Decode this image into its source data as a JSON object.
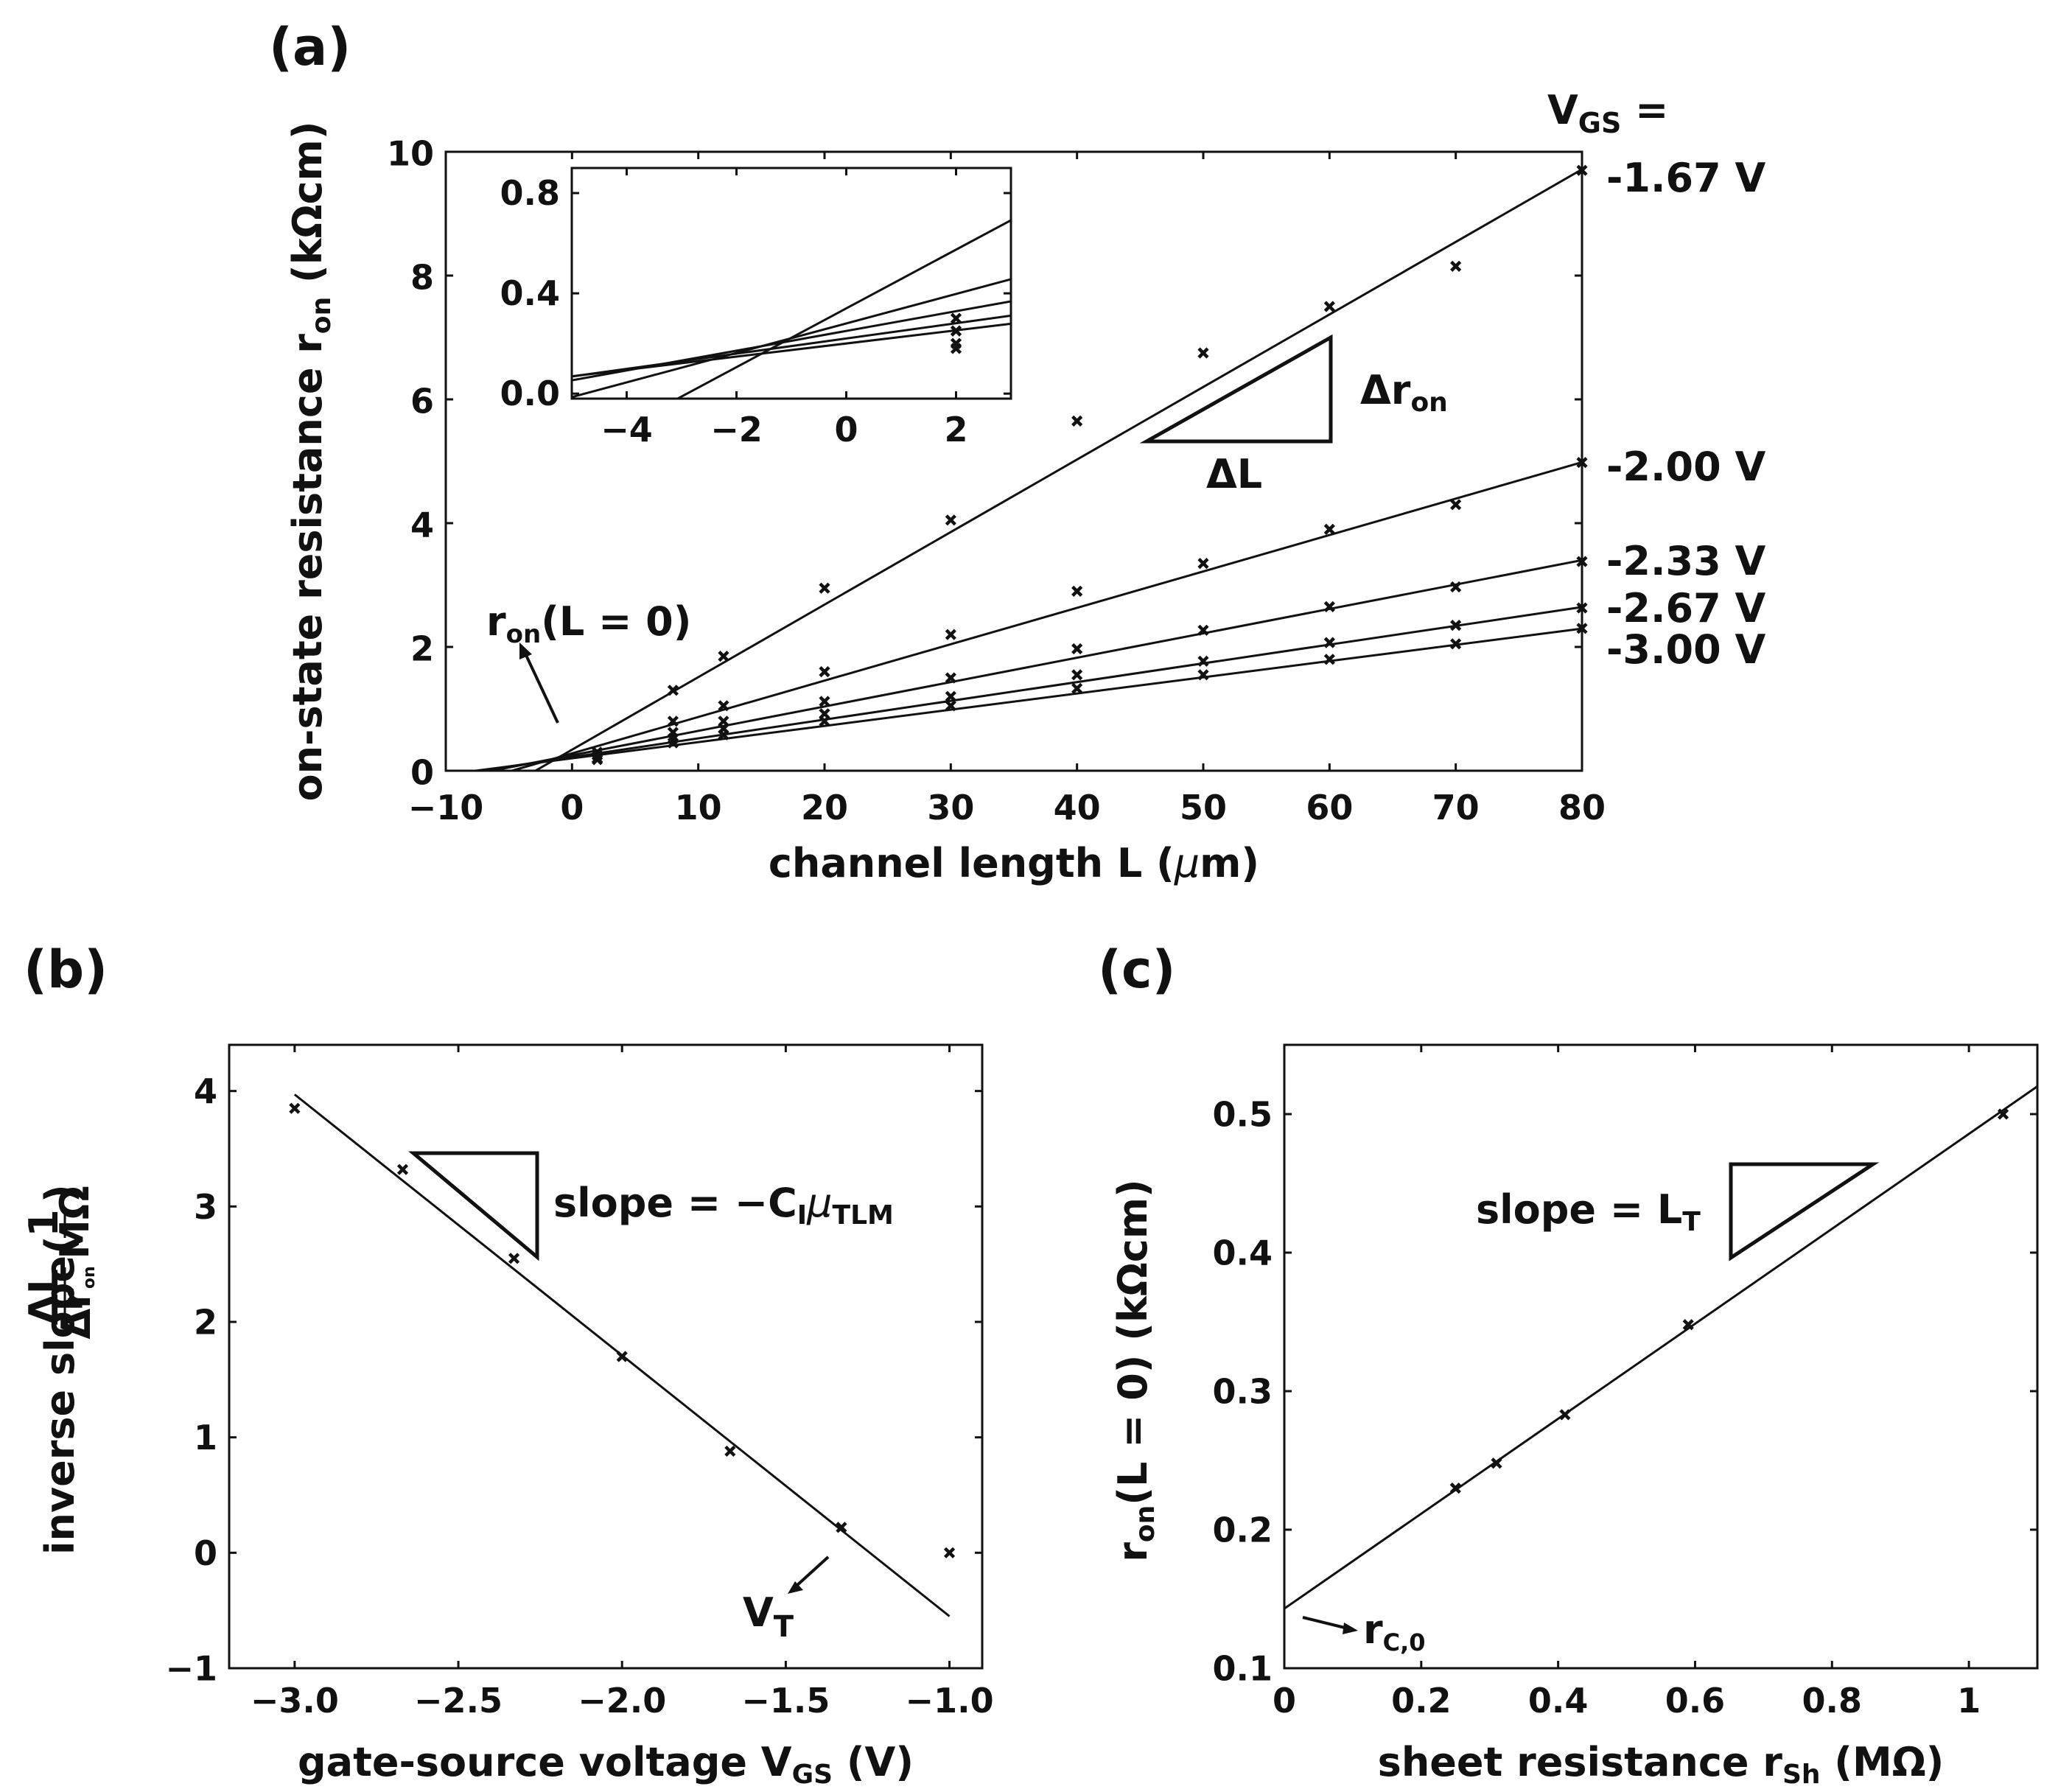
{
  "chart_data": [
    {
      "id": "a",
      "type": "scatter",
      "panel_label": "(a)",
      "xlabel_text": "channel length L (",
      "xlabel_mu": "μ",
      "xlabel_end": "m)",
      "ylabel_text": "on-state resistance r",
      "ylabel_sub": "on",
      "ylabel_unit": " (kΩcm)",
      "xlim": [
        -10,
        80
      ],
      "ylim": [
        0,
        10
      ],
      "xticks": [
        {
          "v": -10,
          "label": "−10"
        },
        {
          "v": 0,
          "label": "0"
        },
        {
          "v": 10,
          "label": "10"
        },
        {
          "v": 20,
          "label": "20"
        },
        {
          "v": 30,
          "label": "30"
        },
        {
          "v": 40,
          "label": "40"
        },
        {
          "v": 50,
          "label": "50"
        },
        {
          "v": 60,
          "label": "60"
        },
        {
          "v": 70,
          "label": "70"
        },
        {
          "v": 80,
          "label": "80"
        }
      ],
      "yticks": [
        {
          "v": 0,
          "label": "0"
        },
        {
          "v": 2,
          "label": "2"
        },
        {
          "v": 4,
          "label": "4"
        },
        {
          "v": 6,
          "label": "6"
        },
        {
          "v": 8,
          "label": "8"
        },
        {
          "v": 10,
          "label": "10"
        }
      ],
      "legend_title": "V",
      "legend_title_sub": "GS",
      "legend_title_end": " =",
      "series": [
        {
          "name": "-1.67 V",
          "x": [
            2,
            8,
            12,
            20,
            30,
            40,
            50,
            60,
            70,
            80
          ],
          "y": [
            0.25,
            1.3,
            1.85,
            2.95,
            4.05,
            5.65,
            6.75,
            7.5,
            8.15,
            9.7
          ],
          "fit": {
            "slope": 0.1172,
            "intercept": 0.34
          }
        },
        {
          "name": "-2.00 V",
          "x": [
            2,
            8,
            12,
            20,
            30,
            40,
            50,
            60,
            70,
            80
          ],
          "y": [
            0.3,
            0.8,
            1.05,
            1.6,
            2.2,
            2.9,
            3.35,
            3.9,
            4.3,
            4.98
          ],
          "fit": {
            "slope": 0.0588,
            "intercept": 0.28
          }
        },
        {
          "name": "-2.33 V",
          "x": [
            2,
            8,
            12,
            20,
            30,
            40,
            50,
            60,
            70,
            80
          ],
          "y": [
            0.25,
            0.62,
            0.8,
            1.12,
            1.5,
            1.97,
            2.27,
            2.65,
            2.97,
            3.38
          ],
          "fit": {
            "slope": 0.0394,
            "intercept": 0.25
          }
        },
        {
          "name": "-2.67 V",
          "x": [
            2,
            8,
            12,
            20,
            30,
            40,
            50,
            60,
            70,
            80
          ],
          "y": [
            0.2,
            0.52,
            0.68,
            0.92,
            1.2,
            1.55,
            1.77,
            2.07,
            2.35,
            2.63
          ],
          "fit": {
            "slope": 0.0303,
            "intercept": 0.22
          }
        },
        {
          "name": "-3.00 V",
          "x": [
            2,
            8,
            12,
            20,
            30,
            40,
            50,
            60,
            70,
            80
          ],
          "y": [
            0.18,
            0.45,
            0.58,
            0.8,
            1.05,
            1.33,
            1.55,
            1.8,
            2.05,
            2.3
          ],
          "fit": {
            "slope": 0.0262,
            "intercept": 0.2
          }
        }
      ],
      "inset": {
        "xlim": [
          -5,
          3
        ],
        "ylim": [
          -0.02,
          0.9
        ],
        "xticks": [
          {
            "v": -4,
            "label": "−4"
          },
          {
            "v": -2,
            "label": "−2"
          },
          {
            "v": 0,
            "label": "0"
          },
          {
            "v": 2,
            "label": "2"
          }
        ],
        "yticks": [
          {
            "v": 0,
            "label": "0.0"
          },
          {
            "v": 0.4,
            "label": "0.4"
          },
          {
            "v": 0.8,
            "label": "0.8"
          }
        ]
      },
      "triangle_label_vertical": "Δr",
      "triangle_label_vertical_sub": "on",
      "triangle_label_horizontal": "ΔL",
      "annotation_intercept": "r",
      "annotation_intercept_sub": "on",
      "annotation_intercept_end": "(L = 0)"
    },
    {
      "id": "b",
      "type": "scatter",
      "panel_label": "(b)",
      "xlabel_text": "gate-source voltage V",
      "xlabel_sub": "GS",
      "xlabel_end": " (V)",
      "ylabel_text": "inverse slope",
      "ylabel_frac_num": "ΔL",
      "ylabel_frac_den": "Δr",
      "ylabel_frac_den_sub": "on",
      "ylabel_unit_num": "1",
      "ylabel_unit_den": "MΩ",
      "xlim": [
        -3.2,
        -0.9
      ],
      "ylim": [
        -1,
        4.4
      ],
      "xticks": [
        {
          "v": -3.0,
          "label": "−3.0"
        },
        {
          "v": -2.5,
          "label": "−2.5"
        },
        {
          "v": -2.0,
          "label": "−2.0"
        },
        {
          "v": -1.5,
          "label": "−1.5"
        },
        {
          "v": -1.0,
          "label": "−1.0"
        }
      ],
      "yticks": [
        {
          "v": -1,
          "label": "−1"
        },
        {
          "v": 0,
          "label": "0"
        },
        {
          "v": 1,
          "label": "1"
        },
        {
          "v": 2,
          "label": "2"
        },
        {
          "v": 3,
          "label": "3"
        },
        {
          "v": 4,
          "label": "4"
        }
      ],
      "series": [
        {
          "name": "data",
          "x": [
            -3.0,
            -2.67,
            -2.33,
            -2.0,
            -1.67,
            -1.33,
            -1.0
          ],
          "y": [
            3.85,
            3.32,
            2.55,
            1.7,
            0.88,
            0.22,
            0.0
          ],
          "fit": {
            "x0": -3.0,
            "y0": 3.97,
            "x1": -1.0,
            "y1": -0.55
          }
        }
      ],
      "slope_text": "slope = −C",
      "slope_sub": "I",
      "slope_mu": "μ",
      "slope_sub2": "TLM",
      "vt_label": "V",
      "vt_sub": "T"
    },
    {
      "id": "c",
      "type": "scatter",
      "panel_label": "(c)",
      "xlabel_text": "sheet resistance r",
      "xlabel_sub": "Sh",
      "xlabel_end": " (MΩ)",
      "ylabel_text": "r",
      "ylabel_sub": "on",
      "ylabel_end": "(L = 0) (kΩcm)",
      "xlim": [
        0,
        1.1
      ],
      "ylim": [
        0.1,
        0.55
      ],
      "xticks": [
        {
          "v": 0,
          "label": "0"
        },
        {
          "v": 0.2,
          "label": "0.2"
        },
        {
          "v": 0.4,
          "label": "0.4"
        },
        {
          "v": 0.6,
          "label": "0.6"
        },
        {
          "v": 0.8,
          "label": "0.8"
        },
        {
          "v": 1.0,
          "label": "1"
        }
      ],
      "yticks": [
        {
          "v": 0.1,
          "label": "0.1"
        },
        {
          "v": 0.2,
          "label": "0.2"
        },
        {
          "v": 0.3,
          "label": "0.3"
        },
        {
          "v": 0.4,
          "label": "0.4"
        },
        {
          "v": 0.5,
          "label": "0.5"
        }
      ],
      "series": [
        {
          "name": "data",
          "x": [
            0.25,
            0.31,
            0.41,
            0.59,
            1.05
          ],
          "y": [
            0.23,
            0.248,
            0.283,
            0.348,
            0.5
          ],
          "fit": {
            "x0": 0.0,
            "y0": 0.143,
            "x1": 1.1,
            "y1": 0.52
          }
        }
      ],
      "slope_text": "slope = L",
      "slope_sub": "T",
      "rc_label": "r",
      "rc_sub": "C,0"
    }
  ]
}
